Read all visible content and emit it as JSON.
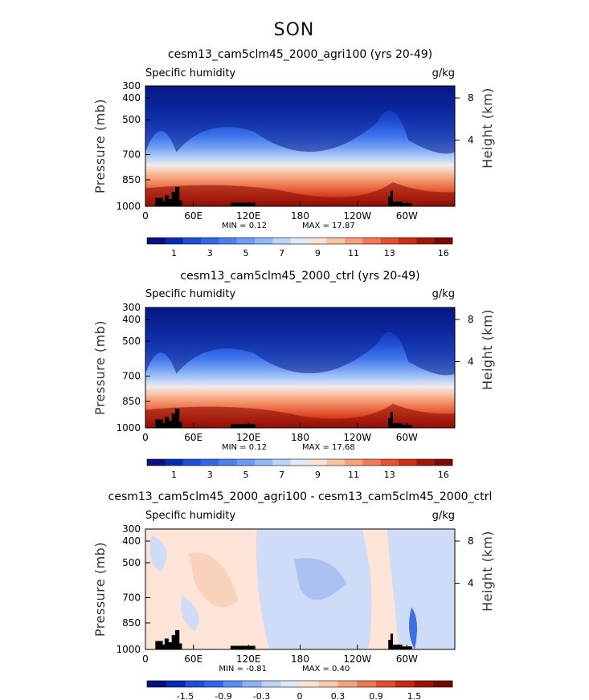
{
  "figure_title": "SON",
  "chart_data": [
    {
      "type": "heatmap",
      "title": "cesm13_cam5clm45_2000_agri100 (yrs 20-49)",
      "left_label": "Specific humidity",
      "right_label": "g/kg",
      "ylabel": "Pressure (mb)",
      "ylabel_right": "Height (km)",
      "xticks": [
        "0",
        "60E",
        "120E",
        "180",
        "120W",
        "60W"
      ],
      "yticks": [
        "300",
        "400",
        "500",
        "700",
        "850",
        "1000"
      ],
      "yticks_right": [
        "8",
        "4"
      ],
      "min_label": "MIN =   0.12",
      "max_label": "MAX =  17.87",
      "colorbar_ticks": [
        "1",
        "3",
        "5",
        "7",
        "9",
        "11",
        "13",
        "16"
      ],
      "colorbar_colors": [
        "#07127a",
        "#0a2bb0",
        "#1e4fd6",
        "#3366e8",
        "#4d7ff0",
        "#6e9bf5",
        "#93b8f8",
        "#bcd4f8",
        "#e0ebf7",
        "#f9e2d4",
        "#f8c4a6",
        "#f6a07c",
        "#f17a55",
        "#e5502f",
        "#cc2e17",
        "#a5160a",
        "#7a0a05"
      ],
      "profile": "full"
    },
    {
      "type": "heatmap",
      "title": "cesm13_cam5clm45_2000_ctrl (yrs 20-49)",
      "left_label": "Specific humidity",
      "right_label": "g/kg",
      "ylabel": "Pressure (mb)",
      "ylabel_right": "Height (km)",
      "xticks": [
        "0",
        "60E",
        "120E",
        "180",
        "120W",
        "60W"
      ],
      "yticks": [
        "300",
        "400",
        "500",
        "700",
        "850",
        "1000"
      ],
      "yticks_right": [
        "8",
        "4"
      ],
      "min_label": "MIN =   0.12",
      "max_label": "MAX =  17.68",
      "colorbar_ticks": [
        "1",
        "3",
        "5",
        "7",
        "9",
        "11",
        "13",
        "16"
      ],
      "colorbar_colors": [
        "#07127a",
        "#0a2bb0",
        "#1e4fd6",
        "#3366e8",
        "#4d7ff0",
        "#6e9bf5",
        "#93b8f8",
        "#bcd4f8",
        "#e0ebf7",
        "#f9e2d4",
        "#f8c4a6",
        "#f6a07c",
        "#f17a55",
        "#e5502f",
        "#cc2e17",
        "#a5160a",
        "#7a0a05"
      ],
      "profile": "full"
    },
    {
      "type": "heatmap",
      "title": "cesm13_cam5clm45_2000_agri100 - cesm13_cam5clm45_2000_ctrl",
      "left_label": "Specific humidity",
      "right_label": "g/kg",
      "ylabel": "Pressure (mb)",
      "ylabel_right": "Height (km)",
      "xticks": [
        "0",
        "60E",
        "120E",
        "180",
        "120W",
        "60W"
      ],
      "yticks": [
        "300",
        "400",
        "500",
        "700",
        "850",
        "1000"
      ],
      "yticks_right": [
        "8",
        "4"
      ],
      "min_label": "MIN =  -0.81",
      "max_label": "MAX =   0.40",
      "colorbar_ticks": [
        "-1.5",
        "-0.9",
        "-0.3",
        "0",
        "0.3",
        "0.9",
        "1.5"
      ],
      "colorbar_colors": [
        "#07127a",
        "#0a2bb0",
        "#1e4fd6",
        "#3366e8",
        "#5b8ef2",
        "#8fb2f7",
        "#bcd3f6",
        "#dde9f8",
        "#fbe3d3",
        "#f8c8ac",
        "#f5a37f",
        "#ef7a52",
        "#e24f2d",
        "#c52b14",
        "#9a1508",
        "#6f0904"
      ],
      "profile": "diff"
    }
  ]
}
